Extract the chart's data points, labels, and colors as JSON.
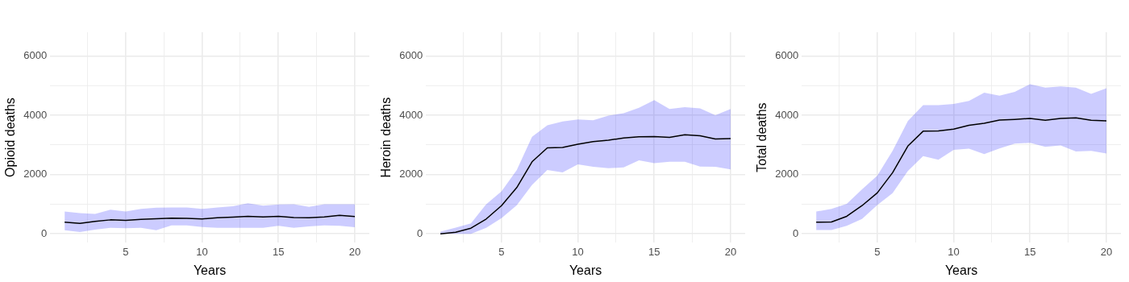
{
  "chart_data": [
    {
      "type": "line",
      "xlabel": "Years",
      "ylabel": "Opioid deaths",
      "x": [
        1,
        2,
        3,
        4,
        5,
        6,
        7,
        8,
        9,
        10,
        11,
        12,
        13,
        14,
        15,
        16,
        17,
        18,
        19,
        20
      ],
      "xlim": [
        0.05,
        20.95
      ],
      "ylim": [
        -300,
        6800
      ],
      "xticks": [
        {
          "value": 2.5,
          "label": null
        },
        5,
        {
          "value": 7.5,
          "label": null
        },
        10,
        {
          "value": 12.5,
          "label": null
        },
        15,
        {
          "value": 17.5,
          "label": null
        },
        20
      ],
      "yticks": [
        0,
        {
          "value": 1000,
          "label": null
        },
        2000,
        {
          "value": 3000,
          "label": null
        },
        4000,
        {
          "value": 5000,
          "label": null
        },
        6000
      ],
      "grid": true,
      "marker": "none",
      "series": [
        {
          "color": "#000000",
          "values": [
            390,
            350,
            420,
            470,
            450,
            490,
            510,
            530,
            520,
            500,
            540,
            560,
            590,
            570,
            590,
            550,
            540,
            570,
            620,
            580
          ],
          "lower": [
            120,
            60,
            140,
            200,
            190,
            200,
            120,
            280,
            280,
            230,
            200,
            200,
            200,
            200,
            270,
            200,
            250,
            280,
            270,
            220
          ],
          "upper": [
            750,
            700,
            670,
            810,
            750,
            840,
            880,
            890,
            890,
            840,
            890,
            930,
            1030,
            950,
            990,
            1000,
            910,
            1000,
            1000,
            1000
          ]
        }
      ]
    },
    {
      "type": "line",
      "xlabel": "Years",
      "ylabel": "Heroin deaths",
      "x": [
        1,
        2,
        3,
        4,
        5,
        6,
        7,
        8,
        9,
        10,
        11,
        12,
        13,
        14,
        15,
        16,
        17,
        18,
        19,
        20
      ],
      "xlim": [
        0.05,
        20.95
      ],
      "ylim": [
        -300,
        6800
      ],
      "xticks": [
        {
          "value": 2.5,
          "label": null
        },
        5,
        {
          "value": 7.5,
          "label": null
        },
        10,
        {
          "value": 12.5,
          "label": null
        },
        15,
        {
          "value": 17.5,
          "label": null
        },
        20
      ],
      "yticks": [
        0,
        {
          "value": 1000,
          "label": null
        },
        2000,
        {
          "value": 3000,
          "label": null
        },
        4000,
        {
          "value": 5000,
          "label": null
        },
        6000
      ],
      "grid": true,
      "marker": "none",
      "series": [
        {
          "color": "#000000",
          "values": [
            0,
            50,
            190,
            500,
            950,
            1560,
            2430,
            2900,
            2910,
            3020,
            3110,
            3160,
            3230,
            3270,
            3280,
            3250,
            3340,
            3310,
            3200,
            3210
          ],
          "lower": [
            0,
            0,
            0,
            200,
            530,
            960,
            1650,
            2150,
            2070,
            2340,
            2260,
            2210,
            2240,
            2480,
            2380,
            2430,
            2430,
            2270,
            2260,
            2170
          ],
          "upper": [
            70,
            210,
            350,
            1000,
            1430,
            2150,
            3270,
            3660,
            3790,
            3860,
            3830,
            3990,
            4070,
            4250,
            4510,
            4210,
            4270,
            4230,
            4000,
            4210
          ]
        }
      ]
    },
    {
      "type": "line",
      "xlabel": "Years",
      "ylabel": "Total deaths",
      "x": [
        1,
        2,
        3,
        4,
        5,
        6,
        7,
        8,
        9,
        10,
        11,
        12,
        13,
        14,
        15,
        16,
        17,
        18,
        19,
        20
      ],
      "xlim": [
        0.05,
        20.95
      ],
      "ylim": [
        -300,
        6800
      ],
      "xticks": [
        {
          "value": 2.5,
          "label": null
        },
        5,
        {
          "value": 7.5,
          "label": null
        },
        10,
        {
          "value": 12.5,
          "label": null
        },
        15,
        {
          "value": 17.5,
          "label": null
        },
        20
      ],
      "yticks": [
        0,
        {
          "value": 1000,
          "label": null
        },
        2000,
        {
          "value": 3000,
          "label": null
        },
        4000,
        {
          "value": 5000,
          "label": null
        },
        6000
      ],
      "grid": true,
      "marker": "none",
      "series": [
        {
          "color": "#000000",
          "values": [
            390,
            400,
            590,
            950,
            1380,
            2060,
            2960,
            3460,
            3470,
            3530,
            3660,
            3730,
            3840,
            3860,
            3890,
            3830,
            3890,
            3910,
            3830,
            3810
          ],
          "lower": [
            130,
            130,
            270,
            500,
            970,
            1370,
            2120,
            2620,
            2500,
            2830,
            2870,
            2690,
            2880,
            3040,
            3070,
            2930,
            2980,
            2780,
            2800,
            2710
          ],
          "upper": [
            750,
            840,
            1010,
            1500,
            1960,
            2800,
            3800,
            4340,
            4340,
            4380,
            4480,
            4760,
            4660,
            4790,
            5050,
            4930,
            4970,
            4930,
            4720,
            4910
          ]
        }
      ]
    }
  ]
}
